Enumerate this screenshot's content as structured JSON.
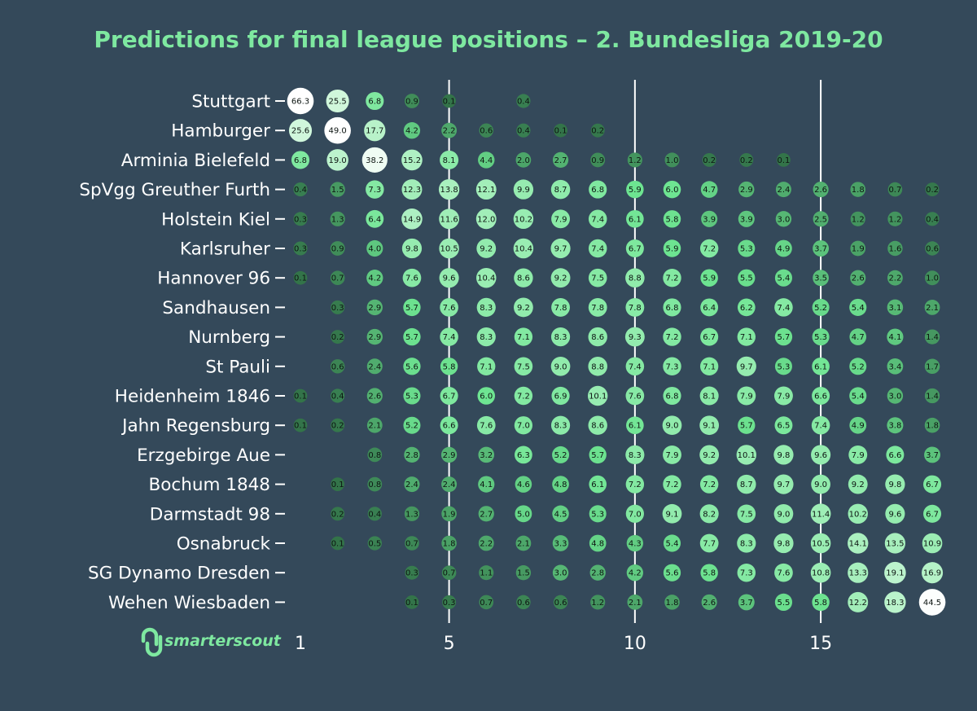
{
  "chart_data": {
    "type": "scatter",
    "subtype": "dot-matrix",
    "title": "Predictions for final league positions – 2. Bundesliga 2019-20",
    "xlabel": "",
    "ylabel": "",
    "xlim": [
      1,
      18
    ],
    "x_ticks": [
      1,
      5,
      10,
      15
    ],
    "reference_lines_x": [
      5,
      10,
      15
    ],
    "grid": false,
    "positions": [
      1,
      2,
      3,
      4,
      5,
      6,
      7,
      8,
      9,
      10,
      11,
      12,
      13,
      14,
      15,
      16,
      17,
      18
    ],
    "teams": [
      "Stuttgart",
      "Hamburger",
      "Arminia Bielefeld",
      "SpVgg Greuther Furth",
      "Holstein Kiel",
      "Karlsruher",
      "Hannover 96",
      "Sandhausen",
      "Nurnberg",
      "St Pauli",
      "Heidenheim 1846",
      "Jahn Regensburg",
      "Erzgebirge Aue",
      "Bochum 1848",
      "Darmstadt 98",
      "Osnabruck",
      "SG Dynamo Dresden",
      "Wehen Wiesbaden"
    ],
    "series": [
      {
        "name": "Stuttgart",
        "values": [
          66.3,
          25.5,
          6.8,
          0.9,
          0.1,
          null,
          0.4,
          null,
          null,
          null,
          null,
          null,
          null,
          null,
          null,
          null,
          null,
          null
        ]
      },
      {
        "name": "Hamburger",
        "values": [
          25.6,
          49.0,
          17.7,
          4.2,
          2.2,
          0.6,
          0.4,
          0.1,
          0.2,
          null,
          null,
          null,
          null,
          null,
          null,
          null,
          null,
          null
        ]
      },
      {
        "name": "Arminia Bielefeld",
        "values": [
          6.8,
          19.0,
          38.2,
          15.2,
          8.1,
          4.4,
          2.0,
          2.7,
          0.9,
          1.2,
          1.0,
          0.2,
          0.2,
          0.1,
          null,
          null,
          null,
          null
        ]
      },
      {
        "name": "SpVgg Greuther Furth",
        "values": [
          0.4,
          1.5,
          7.3,
          12.3,
          13.8,
          12.1,
          9.9,
          8.7,
          6.8,
          5.9,
          6.0,
          4.7,
          2.9,
          2.4,
          2.6,
          1.8,
          0.7,
          0.2
        ]
      },
      {
        "name": "Holstein Kiel",
        "values": [
          0.3,
          1.3,
          6.4,
          14.9,
          11.6,
          12.0,
          10.2,
          7.9,
          7.4,
          6.1,
          5.8,
          3.9,
          3.9,
          3.0,
          2.5,
          1.2,
          1.2,
          0.4
        ]
      },
      {
        "name": "Karlsruher",
        "values": [
          0.3,
          0.9,
          4.0,
          9.8,
          10.5,
          9.2,
          10.4,
          9.7,
          7.4,
          6.7,
          5.9,
          7.2,
          5.3,
          4.9,
          3.7,
          1.9,
          1.6,
          0.6
        ]
      },
      {
        "name": "Hannover 96",
        "values": [
          0.1,
          0.7,
          4.2,
          7.6,
          9.6,
          10.4,
          8.6,
          9.2,
          7.5,
          8.8,
          7.2,
          5.9,
          5.5,
          5.4,
          3.5,
          2.6,
          2.2,
          1.0
        ]
      },
      {
        "name": "Sandhausen",
        "values": [
          null,
          0.3,
          2.9,
          5.7,
          7.6,
          8.3,
          9.2,
          7.8,
          7.8,
          7.8,
          6.8,
          6.4,
          6.2,
          7.4,
          5.2,
          5.4,
          3.1,
          2.1
        ]
      },
      {
        "name": "Nurnberg",
        "values": [
          null,
          0.2,
          2.9,
          5.7,
          7.4,
          8.3,
          7.1,
          8.3,
          8.6,
          9.3,
          7.2,
          6.7,
          7.1,
          5.7,
          5.3,
          4.7,
          4.1,
          1.4
        ]
      },
      {
        "name": "St Pauli",
        "values": [
          null,
          0.6,
          2.4,
          5.6,
          5.8,
          7.1,
          7.5,
          9.0,
          8.8,
          7.4,
          7.3,
          7.1,
          9.7,
          5.3,
          6.1,
          5.2,
          3.4,
          1.7
        ]
      },
      {
        "name": "Heidenheim 1846",
        "values": [
          0.1,
          0.4,
          2.6,
          5.3,
          6.7,
          6.0,
          7.2,
          6.9,
          10.1,
          7.6,
          6.8,
          8.1,
          7.9,
          7.9,
          6.6,
          5.4,
          3.0,
          1.4
        ]
      },
      {
        "name": "Jahn Regensburg",
        "values": [
          0.1,
          0.2,
          2.1,
          5.2,
          6.6,
          7.6,
          7.0,
          8.3,
          8.6,
          6.1,
          9.0,
          9.1,
          5.7,
          6.5,
          7.4,
          4.9,
          3.8,
          1.8
        ]
      },
      {
        "name": "Erzgebirge Aue",
        "values": [
          null,
          null,
          0.8,
          2.8,
          2.9,
          3.2,
          6.3,
          5.2,
          5.7,
          8.3,
          7.9,
          9.2,
          10.1,
          9.8,
          9.6,
          7.9,
          6.6,
          3.7
        ]
      },
      {
        "name": "Bochum 1848",
        "values": [
          null,
          0.1,
          0.8,
          2.4,
          2.4,
          4.1,
          4.6,
          4.8,
          6.1,
          7.2,
          7.2,
          7.2,
          8.7,
          9.7,
          9.0,
          9.2,
          9.8,
          6.7
        ]
      },
      {
        "name": "Darmstadt 98",
        "values": [
          null,
          0.2,
          0.4,
          1.3,
          1.9,
          2.7,
          5.0,
          4.5,
          5.3,
          7.0,
          9.1,
          8.2,
          7.5,
          9.0,
          11.4,
          10.2,
          9.6,
          6.7
        ]
      },
      {
        "name": "Osnabruck",
        "values": [
          null,
          0.1,
          0.5,
          0.7,
          1.8,
          2.2,
          2.1,
          3.3,
          4.8,
          4.3,
          5.4,
          7.7,
          8.3,
          9.8,
          10.5,
          14.1,
          13.5,
          10.9
        ]
      },
      {
        "name": "SG Dynamo Dresden",
        "values": [
          null,
          null,
          null,
          0.3,
          0.7,
          1.1,
          1.5,
          3.0,
          2.8,
          4.2,
          5.6,
          5.8,
          7.3,
          7.6,
          10.8,
          13.3,
          19.1,
          16.9
        ]
      },
      {
        "name": "Wehen Wiesbaden",
        "values": [
          null,
          null,
          null,
          0.1,
          0.3,
          0.7,
          0.6,
          0.6,
          1.2,
          2.1,
          1.8,
          2.6,
          3.7,
          5.5,
          5.8,
          12.2,
          18.3,
          44.5
        ]
      }
    ]
  },
  "colors": {
    "background": "#34495a",
    "title": "#7ee8a0",
    "text": "#ffffff",
    "refline": "#ffffff",
    "dot_low": "#2f6d45",
    "dot_mid": "#6ee592",
    "dot_high": "#ffffff",
    "brand": "#7ee8a0"
  },
  "brand": {
    "name": "smarterscout",
    "logo_icon": "smarterscout-logo-icon"
  }
}
